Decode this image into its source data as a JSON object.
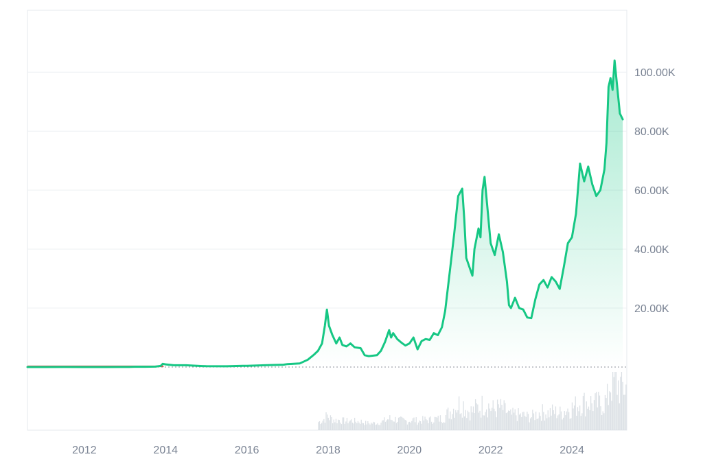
{
  "chart_data": {
    "type": "area",
    "x_axis": {
      "ticks": [
        "2012",
        "2014",
        "2016",
        "2018",
        "2020",
        "2022",
        "2024"
      ],
      "range": [
        2010.6,
        2025.35
      ]
    },
    "y_axis": {
      "ticks": [
        "20.00K",
        "40.00K",
        "60.00K",
        "80.00K",
        "100.00K"
      ],
      "tick_values": [
        20000,
        40000,
        60000,
        80000,
        100000
      ],
      "range": [
        0,
        121000
      ],
      "position": "right"
    },
    "grid": true,
    "baseline_dotted": true,
    "colors": {
      "line": "#16c784",
      "early_line": "#d9534f",
      "area_top": "#16c784",
      "grid": "#eef0f3",
      "volume": "#d5dae1",
      "frame": "#e6e9ee"
    },
    "series": [
      {
        "values": [
          [
            2010.6,
            0
          ],
          [
            2011.0,
            0
          ],
          [
            2011.5,
            15
          ],
          [
            2012.0,
            6
          ],
          [
            2012.5,
            9
          ],
          [
            2012.9,
            12
          ],
          [
            2013.1,
            20
          ],
          [
            2013.3,
            110
          ],
          [
            2013.5,
            90
          ],
          [
            2013.75,
            140
          ],
          [
            2013.88,
            400
          ],
          [
            2013.93,
            1100
          ],
          [
            2014.0,
            900
          ],
          [
            2014.2,
            600
          ],
          [
            2014.5,
            600
          ],
          [
            2014.9,
            330
          ],
          [
            2015.0,
            280
          ],
          [
            2015.5,
            250
          ],
          [
            2015.9,
            400
          ],
          [
            2016.0,
            430
          ],
          [
            2016.5,
            650
          ],
          [
            2016.9,
            800
          ],
          [
            2017.0,
            1000
          ],
          [
            2017.3,
            1200
          ],
          [
            2017.5,
            2500
          ],
          [
            2017.65,
            4200
          ],
          [
            2017.75,
            5500
          ],
          [
            2017.85,
            8000
          ],
          [
            2017.92,
            14000
          ],
          [
            2017.97,
            19500
          ],
          [
            2018.02,
            14000
          ],
          [
            2018.1,
            11000
          ],
          [
            2018.2,
            8000
          ],
          [
            2018.28,
            10000
          ],
          [
            2018.35,
            7500
          ],
          [
            2018.45,
            7000
          ],
          [
            2018.55,
            8000
          ],
          [
            2018.65,
            6700
          ],
          [
            2018.8,
            6400
          ],
          [
            2018.9,
            4000
          ],
          [
            2019.0,
            3700
          ],
          [
            2019.2,
            4000
          ],
          [
            2019.3,
            5500
          ],
          [
            2019.4,
            8500
          ],
          [
            2019.5,
            12500
          ],
          [
            2019.55,
            10000
          ],
          [
            2019.6,
            11500
          ],
          [
            2019.7,
            9500
          ],
          [
            2019.8,
            8300
          ],
          [
            2019.9,
            7300
          ],
          [
            2020.0,
            8000
          ],
          [
            2020.1,
            10000
          ],
          [
            2020.2,
            6000
          ],
          [
            2020.3,
            8800
          ],
          [
            2020.4,
            9500
          ],
          [
            2020.5,
            9200
          ],
          [
            2020.6,
            11500
          ],
          [
            2020.7,
            10800
          ],
          [
            2020.8,
            13500
          ],
          [
            2020.88,
            19000
          ],
          [
            2021.0,
            33000
          ],
          [
            2021.1,
            45000
          ],
          [
            2021.2,
            58000
          ],
          [
            2021.3,
            60500
          ],
          [
            2021.35,
            50000
          ],
          [
            2021.4,
            37000
          ],
          [
            2021.5,
            33000
          ],
          [
            2021.55,
            31000
          ],
          [
            2021.6,
            40000
          ],
          [
            2021.7,
            47000
          ],
          [
            2021.75,
            44000
          ],
          [
            2021.8,
            60000
          ],
          [
            2021.85,
            64500
          ],
          [
            2021.9,
            57000
          ],
          [
            2022.0,
            42000
          ],
          [
            2022.1,
            38000
          ],
          [
            2022.2,
            45000
          ],
          [
            2022.3,
            39000
          ],
          [
            2022.4,
            29000
          ],
          [
            2022.45,
            21000
          ],
          [
            2022.5,
            20000
          ],
          [
            2022.6,
            23500
          ],
          [
            2022.7,
            20000
          ],
          [
            2022.8,
            19500
          ],
          [
            2022.9,
            16800
          ],
          [
            2023.0,
            16600
          ],
          [
            2023.1,
            23000
          ],
          [
            2023.2,
            28000
          ],
          [
            2023.3,
            29500
          ],
          [
            2023.4,
            27000
          ],
          [
            2023.5,
            30500
          ],
          [
            2023.6,
            29000
          ],
          [
            2023.7,
            26500
          ],
          [
            2023.8,
            34000
          ],
          [
            2023.9,
            42000
          ],
          [
            2024.0,
            44000
          ],
          [
            2024.1,
            52000
          ],
          [
            2024.2,
            69000
          ],
          [
            2024.3,
            63000
          ],
          [
            2024.4,
            68000
          ],
          [
            2024.5,
            62000
          ],
          [
            2024.6,
            58000
          ],
          [
            2024.7,
            60000
          ],
          [
            2024.8,
            67000
          ],
          [
            2024.85,
            76000
          ],
          [
            2024.9,
            95000
          ],
          [
            2024.95,
            98000
          ],
          [
            2025.0,
            94000
          ],
          [
            2025.05,
            104000
          ],
          [
            2025.1,
            97000
          ],
          [
            2025.18,
            86000
          ],
          [
            2025.25,
            84000
          ]
        ]
      }
    ]
  }
}
